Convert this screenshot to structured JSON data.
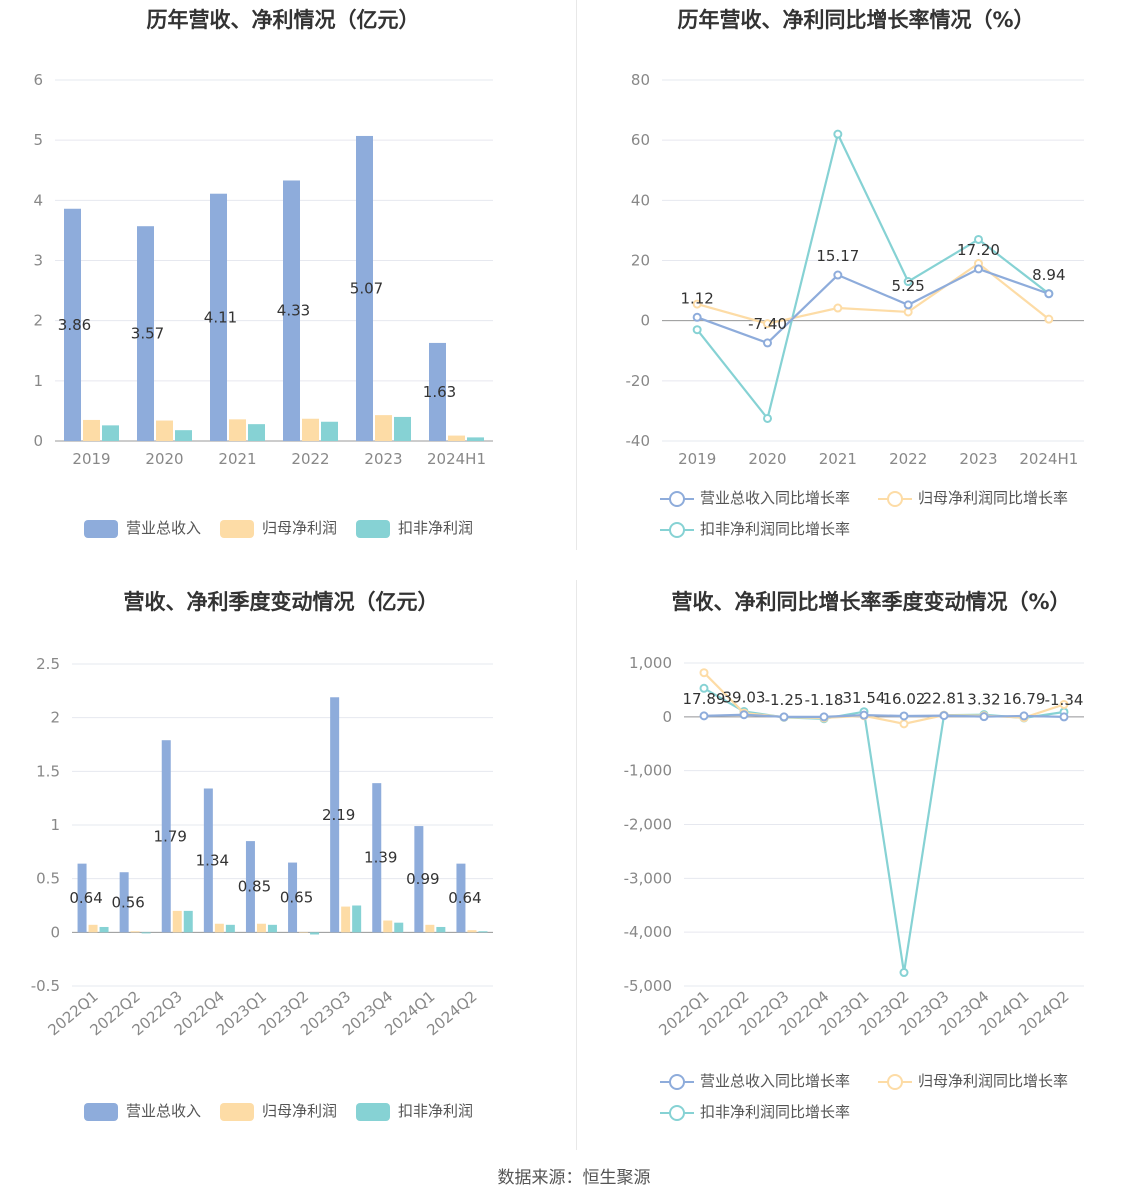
{
  "source_text": "数据来源：恒生聚源",
  "colors": {
    "revenue": "#8eacdb",
    "netprofit": "#fddca6",
    "deducted": "#86d2d4"
  },
  "chart_data": [
    {
      "id": "annual_amount",
      "type": "bar",
      "title": "历年营收、净利情况（亿元）",
      "categories": [
        "2019",
        "2020",
        "2021",
        "2022",
        "2023",
        "2024H1"
      ],
      "ylim": [
        0,
        6
      ],
      "yticks": [
        0,
        1,
        2,
        3,
        4,
        5,
        6
      ],
      "ytick_labels": [
        "0",
        "1",
        "2",
        "3",
        "4",
        "5",
        "6"
      ],
      "series": [
        {
          "name": "营业总收入",
          "values": [
            3.86,
            3.57,
            4.11,
            4.33,
            5.07,
            1.63
          ],
          "labels": [
            "3.86",
            "3.57",
            "4.11",
            "4.33",
            "5.07",
            "1.63"
          ]
        },
        {
          "name": "归母净利润",
          "values": [
            0.35,
            0.34,
            0.36,
            0.37,
            0.43,
            0.09
          ]
        },
        {
          "name": "扣非净利润",
          "values": [
            0.26,
            0.18,
            0.28,
            0.32,
            0.4,
            0.06
          ]
        }
      ],
      "legend": "bottom",
      "grid": true
    },
    {
      "id": "annual_growth",
      "type": "line",
      "title": "历年营收、净利同比增长率情况（%）",
      "categories": [
        "2019",
        "2020",
        "2021",
        "2022",
        "2023",
        "2024H1"
      ],
      "ylim": [
        -40,
        80
      ],
      "yticks": [
        -40,
        -20,
        0,
        20,
        40,
        60,
        80
      ],
      "ytick_labels": [
        "-40",
        "-20",
        "0",
        "20",
        "40",
        "60",
        "80"
      ],
      "series": [
        {
          "name": "营业总收入同比增长率",
          "values": [
            1.12,
            -7.4,
            15.17,
            5.25,
            17.2,
            8.94
          ],
          "labels": [
            "1.12",
            "-7.40",
            "15.17",
            "5.25",
            "17.20",
            "8.94"
          ]
        },
        {
          "name": "归母净利润同比增长率",
          "values": [
            5.5,
            -1.0,
            4.2,
            2.9,
            19.0,
            0.5
          ]
        },
        {
          "name": "扣非净利润同比增长率",
          "values": [
            -3.0,
            -32.5,
            62.0,
            13.0,
            27.0,
            9.0
          ]
        }
      ],
      "legend": "bottom",
      "grid": true
    },
    {
      "id": "quarterly_amount",
      "type": "bar",
      "title": "营收、净利季度变动情况（亿元）",
      "categories": [
        "2022Q1",
        "2022Q2",
        "2022Q3",
        "2022Q4",
        "2023Q1",
        "2023Q2",
        "2023Q3",
        "2023Q4",
        "2024Q1",
        "2024Q2"
      ],
      "ylim": [
        -0.5,
        2.5
      ],
      "yticks": [
        -0.5,
        0,
        0.5,
        1,
        1.5,
        2,
        2.5
      ],
      "ytick_labels": [
        "-0.5",
        "0",
        "0.5",
        "1",
        "1.5",
        "2",
        "2.5"
      ],
      "series": [
        {
          "name": "营业总收入",
          "values": [
            0.64,
            0.56,
            1.79,
            1.34,
            0.85,
            0.65,
            2.19,
            1.39,
            0.99,
            0.64
          ],
          "labels": [
            "0.64",
            "0.56",
            "1.79",
            "1.34",
            "0.85",
            "0.65",
            "2.19",
            "1.39",
            "0.99",
            "0.64"
          ]
        },
        {
          "name": "归母净利润",
          "values": [
            0.07,
            0.01,
            0.2,
            0.08,
            0.08,
            0.0,
            0.24,
            0.11,
            0.07,
            0.02
          ]
        },
        {
          "name": "扣非净利润",
          "values": [
            0.05,
            -0.01,
            0.2,
            0.07,
            0.07,
            -0.02,
            0.25,
            0.09,
            0.05,
            0.01
          ]
        }
      ],
      "legend": "bottom",
      "grid": true
    },
    {
      "id": "quarterly_growth",
      "type": "line",
      "title": "营收、净利同比增长率季度变动情况（%）",
      "categories": [
        "2022Q1",
        "2022Q2",
        "2022Q3",
        "2022Q4",
        "2023Q1",
        "2023Q2",
        "2023Q3",
        "2023Q4",
        "2024Q1",
        "2024Q2"
      ],
      "ylim": [
        -5000,
        1000
      ],
      "yticks": [
        -5000,
        -4000,
        -3000,
        -2000,
        -1000,
        0,
        1000
      ],
      "ytick_labels": [
        "-5,000",
        "-4,000",
        "-3,000",
        "-2,000",
        "-1,000",
        "0",
        "1,000"
      ],
      "series": [
        {
          "name": "营业总收入同比增长率",
          "values": [
            17.89,
            39.03,
            -1.25,
            -1.18,
            31.54,
            16.02,
            22.81,
            3.32,
            16.79,
            -1.34
          ],
          "labels": [
            "17.89",
            "39.03",
            "-1.25",
            "-1.18",
            "31.54",
            "16.02",
            "22.81",
            "3.32",
            "16.79",
            "-1.34"
          ]
        },
        {
          "name": "归母净利润同比增长率",
          "values": [
            820,
            70,
            -5,
            -20,
            20,
            -130,
            30,
            20,
            -15,
            230
          ]
        },
        {
          "name": "扣非净利润同比增长率",
          "values": [
            530,
            100,
            -10,
            -35,
            95,
            -4750,
            30,
            40,
            -20,
            90
          ]
        }
      ],
      "legend": "bottom",
      "grid": true
    }
  ]
}
